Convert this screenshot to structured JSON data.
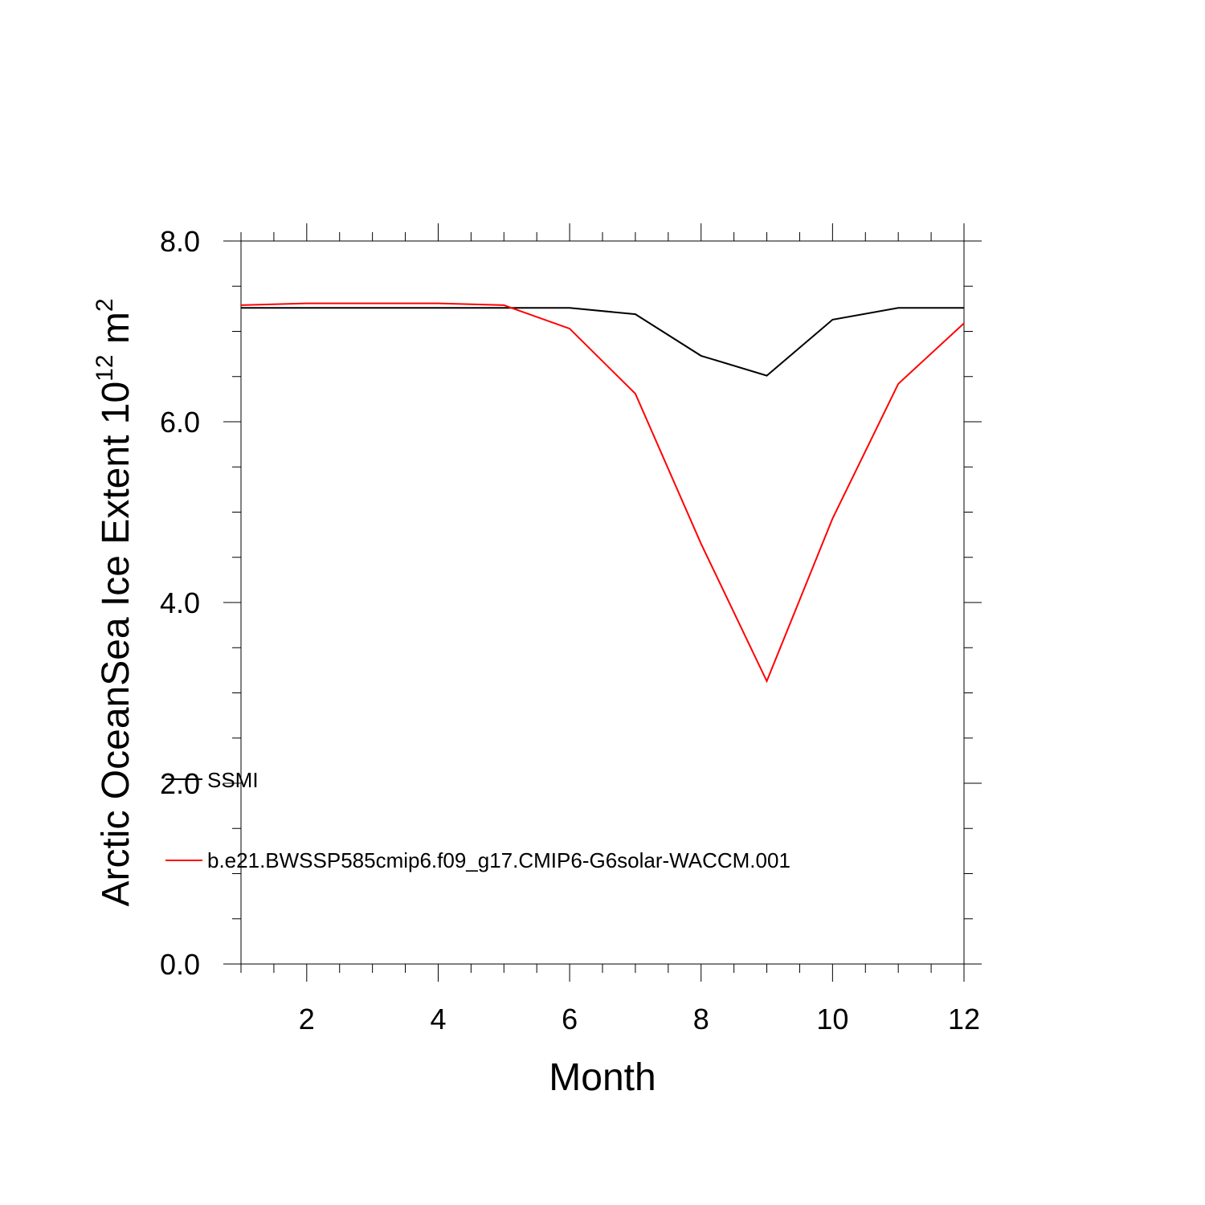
{
  "chart_data": {
    "type": "line",
    "title": "",
    "xlabel": "Month",
    "ylabel_prefix": "Arctic OceanSea Ice Extent 10",
    "ylabel_exp1": "12",
    "ylabel_unit": " m",
    "ylabel_exp2": "2",
    "xlim": [
      1,
      12
    ],
    "ylim": [
      0,
      8
    ],
    "x_ticks": [
      2,
      4,
      6,
      8,
      10,
      12
    ],
    "x_tick_labels": [
      "2",
      "4",
      "6",
      "8",
      "10",
      "12"
    ],
    "y_ticks": [
      0,
      2,
      4,
      6,
      8
    ],
    "y_tick_labels": [
      "0.0",
      "2.0",
      "4.0",
      "6.0",
      "8.0"
    ],
    "x_minor_step": 0.5,
    "y_minor_step": 0.5,
    "grid": false,
    "legend_position": "bottom-left",
    "x": [
      1,
      2,
      3,
      4,
      5,
      6,
      7,
      8,
      9,
      10,
      11,
      12
    ],
    "series": [
      {
        "name": "SSMI",
        "color": "#000000",
        "values": [
          7.26,
          7.26,
          7.26,
          7.26,
          7.26,
          7.26,
          7.19,
          6.73,
          6.51,
          7.13,
          7.26,
          7.26
        ]
      },
      {
        "name": "b.e21.BWSSP585cmip6.f09_g17.CMIP6-G6solar-WACCM.001",
        "color": "#ff0000",
        "values": [
          7.29,
          7.31,
          7.31,
          7.31,
          7.29,
          7.03,
          6.31,
          4.65,
          3.13,
          4.93,
          6.42,
          7.09
        ]
      }
    ]
  }
}
